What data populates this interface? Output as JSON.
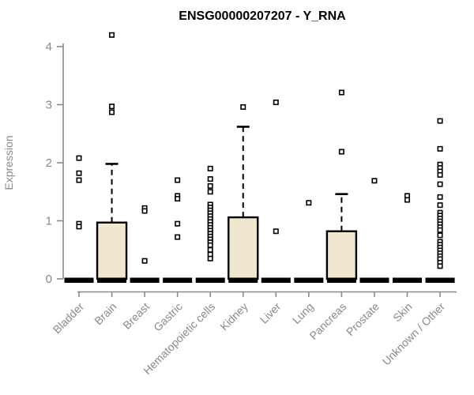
{
  "chart_data": {
    "type": "box",
    "title": "ENSG00000207207 - Y_RNA",
    "ylabel": "Expression",
    "xlabel": "",
    "ylim": [
      0,
      4.3
    ],
    "yticks": [
      0,
      1,
      2,
      3,
      4
    ],
    "grid": false,
    "legend": "none",
    "colors": {
      "box_fill": "#EFE8CF",
      "box_stroke": "#000000",
      "axis": "#8a8a8a",
      "outlier_stroke": "#000000",
      "outlier_fill": "#ffffff"
    },
    "categories": [
      "Bladder",
      "Brain",
      "Breast",
      "Gastric",
      "Hematopoietic cells",
      "Kidney",
      "Liver",
      "Lung",
      "Pancreas",
      "Prostate",
      "Skin",
      "Unknown / Other"
    ],
    "series": [
      {
        "name": "Bladder",
        "q1": 0,
        "median": 0,
        "q3": 0,
        "whisker_low": 0,
        "whisker_high": 0,
        "outliers": [
          2.08,
          1.82,
          1.7,
          0.95,
          0.9
        ]
      },
      {
        "name": "Brain",
        "q1": 0,
        "median": 0,
        "q3": 0.97,
        "whisker_low": 0,
        "whisker_high": 1.98,
        "outliers": [
          4.2,
          2.97,
          2.87
        ]
      },
      {
        "name": "Breast",
        "q1": 0,
        "median": 0,
        "q3": 0,
        "whisker_low": 0,
        "whisker_high": 0,
        "outliers": [
          1.22,
          1.17,
          0.31
        ]
      },
      {
        "name": "Gastric",
        "q1": 0,
        "median": 0,
        "q3": 0,
        "whisker_low": 0,
        "whisker_high": 0,
        "outliers": [
          1.7,
          1.43,
          1.38,
          0.95,
          0.72
        ]
      },
      {
        "name": "Hematopoietic cells",
        "q1": 0,
        "median": 0,
        "q3": 0,
        "whisker_low": 0,
        "whisker_high": 0,
        "outliers": [
          1.9,
          1.72,
          1.6,
          1.5,
          1.28,
          1.23,
          1.18,
          1.13,
          1.08,
          1.03,
          0.98,
          0.93,
          0.88,
          0.83,
          0.78,
          0.73,
          0.68,
          0.63,
          0.58,
          0.5,
          0.42,
          0.35
        ]
      },
      {
        "name": "Kidney",
        "q1": 0,
        "median": 0,
        "q3": 1.06,
        "whisker_low": 0,
        "whisker_high": 2.62,
        "outliers": [
          2.96
        ]
      },
      {
        "name": "Liver",
        "q1": 0,
        "median": 0,
        "q3": 0,
        "whisker_low": 0,
        "whisker_high": 0,
        "outliers": [
          3.04,
          0.82
        ]
      },
      {
        "name": "Lung",
        "q1": 0,
        "median": 0,
        "q3": 0,
        "whisker_low": 0,
        "whisker_high": 0,
        "outliers": [
          1.31
        ]
      },
      {
        "name": "Pancreas",
        "q1": 0,
        "median": 0,
        "q3": 0.82,
        "whisker_low": 0,
        "whisker_high": 1.46,
        "outliers": [
          3.21,
          2.19
        ]
      },
      {
        "name": "Prostate",
        "q1": 0,
        "median": 0,
        "q3": 0,
        "whisker_low": 0,
        "whisker_high": 0,
        "outliers": [
          1.69
        ]
      },
      {
        "name": "Skin",
        "q1": 0,
        "median": 0,
        "q3": 0,
        "whisker_low": 0,
        "whisker_high": 0,
        "outliers": [
          1.43,
          1.36
        ]
      },
      {
        "name": "Unknown / Other",
        "q1": 0,
        "median": 0,
        "q3": 0,
        "whisker_low": 0,
        "whisker_high": 0,
        "outliers": [
          2.72,
          2.24,
          1.97,
          1.91,
          1.85,
          1.79,
          1.63,
          1.41,
          1.27,
          1.14,
          1.09,
          1.04,
          0.99,
          0.94,
          0.89,
          0.84,
          0.75,
          0.64,
          0.59,
          0.54,
          0.49,
          0.44,
          0.39,
          0.34,
          0.28,
          0.22
        ]
      }
    ]
  }
}
